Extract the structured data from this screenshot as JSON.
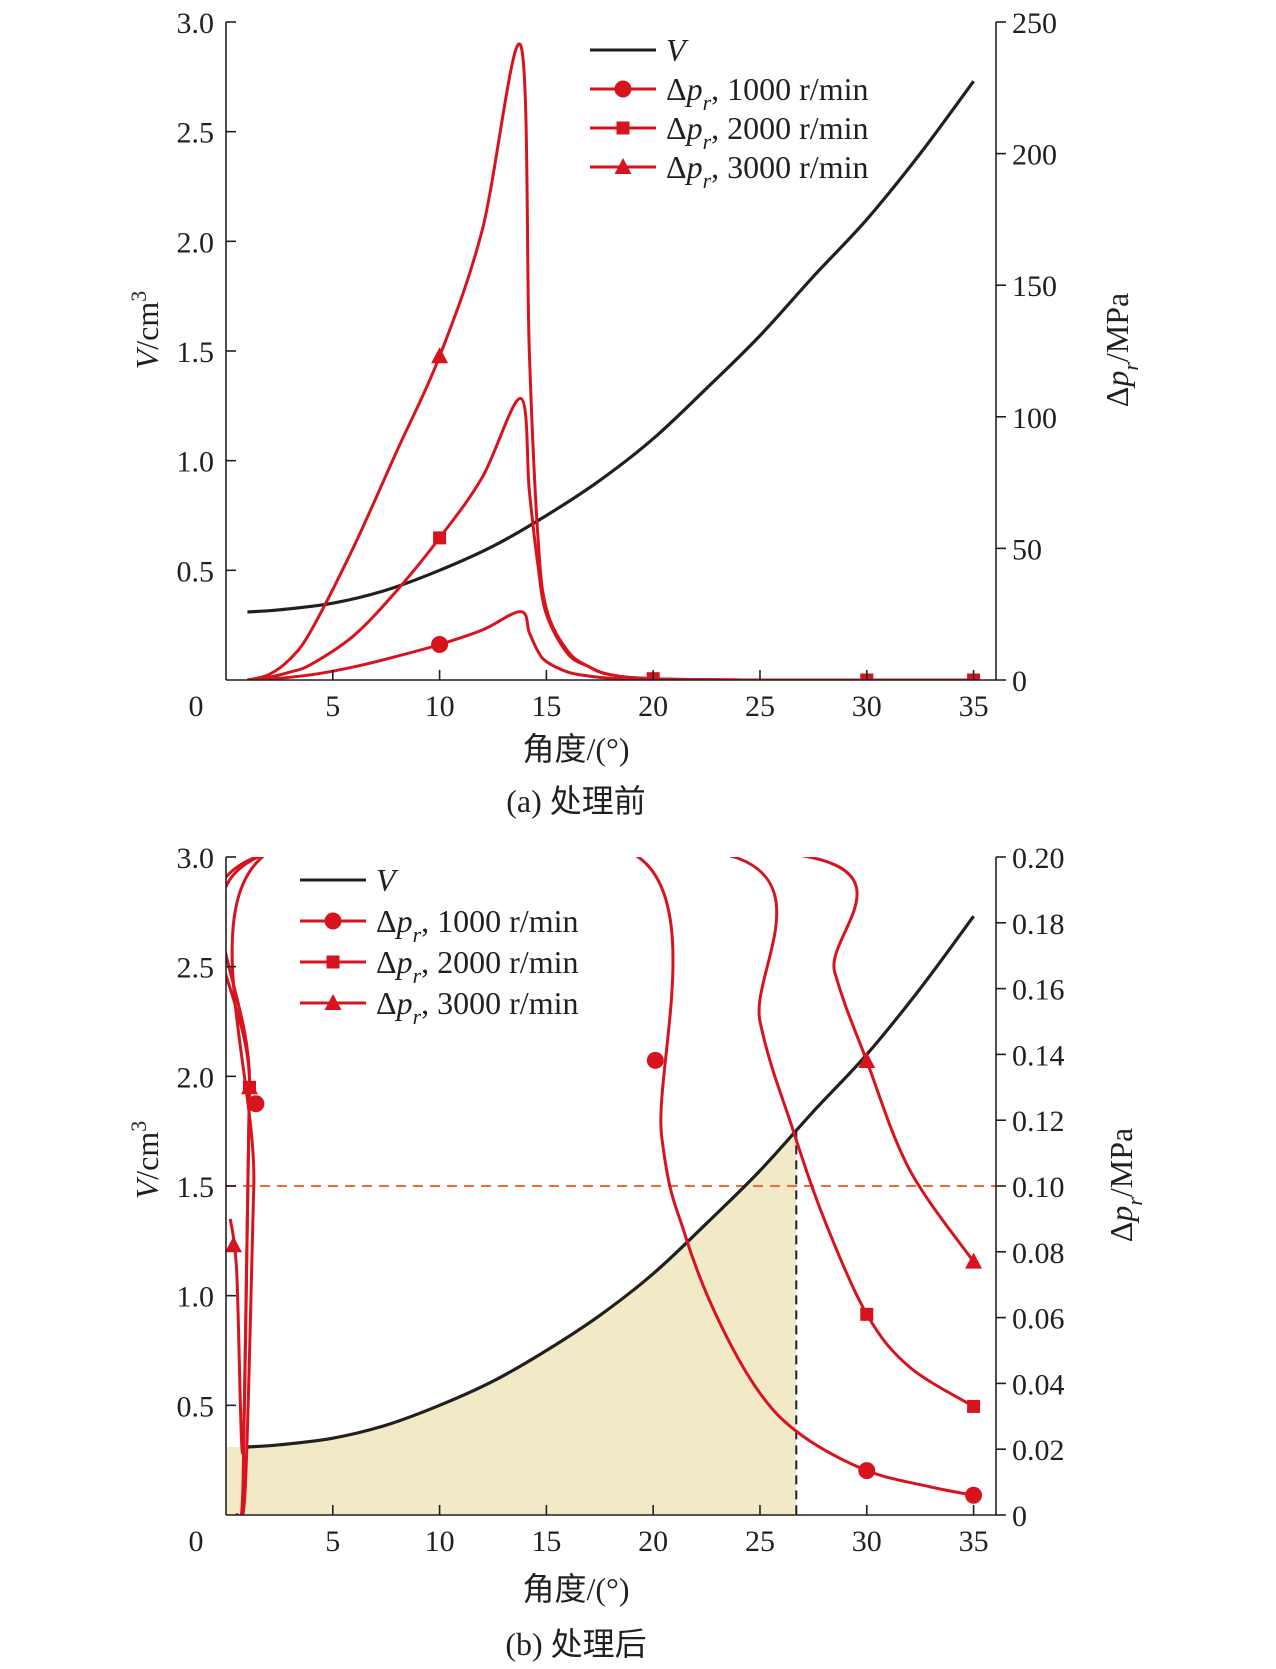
{
  "figure": {
    "colors": {
      "red": "#d7141e",
      "black": "#231f20",
      "threshold": "#ee6a3c",
      "fill": "#f2eac6"
    },
    "panels": [
      {
        "caption": "(a) 处理前",
        "xlabel": "角度/(°)",
        "ylabel_left": {
          "symbol": "V",
          "unit": "/cm",
          "exponent": "3"
        },
        "ylabel_right": {
          "delta": "Δ",
          "symbol": "p",
          "subscript": "r",
          "unit": "/MPa"
        },
        "x_ticks": [
          "0",
          "5",
          "10",
          "15",
          "20",
          "25",
          "30",
          "35"
        ],
        "y_left_ticks": [
          "0.5",
          "1.0",
          "1.5",
          "2.0",
          "2.5",
          "3.0"
        ],
        "y_right_ticks": [
          "0",
          "50",
          "100",
          "150",
          "200",
          "250"
        ],
        "legend": [
          {
            "name": "V",
            "marker": "none",
            "italic": true
          },
          {
            "name": ", 1000 r/min",
            "marker": "circle"
          },
          {
            "name": ", 2000 r/min",
            "marker": "square"
          },
          {
            "name": ", 3000 r/min",
            "marker": "triangle"
          }
        ]
      },
      {
        "caption": "(b) 处理后",
        "xlabel": "角度/(°)",
        "ylabel_left": {
          "symbol": "V",
          "unit": "/cm",
          "exponent": "3"
        },
        "ylabel_right": {
          "delta": "Δ",
          "symbol": "p",
          "subscript": "r",
          "unit": "/MPa"
        },
        "x_ticks": [
          "0",
          "5",
          "10",
          "15",
          "20",
          "25",
          "30",
          "35"
        ],
        "y_left_ticks": [
          "0.5",
          "1.0",
          "1.5",
          "2.0",
          "2.5",
          "3.0"
        ],
        "y_right_ticks": [
          "0",
          "0.02",
          "0.04",
          "0.06",
          "0.08",
          "0.10",
          "0.12",
          "0.14",
          "0.16",
          "0.18",
          "0.20"
        ],
        "legend": [
          {
            "name": "V",
            "marker": "none",
            "italic": true
          },
          {
            "name": ", 1000 r/min",
            "marker": "circle"
          },
          {
            "name": ", 2000 r/min",
            "marker": "square"
          },
          {
            "name": ", 3000 r/min",
            "marker": "triangle"
          }
        ]
      }
    ]
  },
  "chart_data": [
    {
      "type": "line",
      "title": "(a) 处理前",
      "xlabel": "角度/(°)",
      "ylabel": "V/cm3",
      "ylabel_right": "Δp_r/MPa",
      "xlim": [
        0,
        36
      ],
      "ylim": [
        0,
        3.0
      ],
      "ylim_right": [
        0,
        250
      ],
      "grid": false,
      "legend_position": "top-right",
      "series": [
        {
          "name": "V",
          "axis": "left",
          "color": "#231f20",
          "marker": "none",
          "x": [
            1,
            2.5,
            5,
            7.5,
            10,
            12.5,
            15,
            17.5,
            20,
            22.5,
            25,
            27.5,
            30,
            32.5,
            35
          ],
          "y": [
            0.31,
            0.32,
            0.35,
            0.41,
            0.5,
            0.61,
            0.75,
            0.91,
            1.1,
            1.33,
            1.57,
            1.84,
            2.1,
            2.4,
            2.73
          ]
        },
        {
          "name": "Δp_r, 1000 r/min",
          "axis": "right",
          "color": "#d7141e",
          "marker": "circle",
          "x": [
            1,
            2,
            4,
            6,
            8,
            10,
            12,
            13.8,
            14.2,
            14.6,
            15,
            16,
            17,
            18,
            20,
            25,
            30,
            35
          ],
          "y": [
            0,
            0.3,
            2,
            5,
            9,
            13.5,
            19,
            26,
            18,
            11,
            7,
            3,
            1.5,
            0.7,
            0.2,
            0,
            0,
            0
          ],
          "markers_x": [
            10
          ]
        },
        {
          "name": "Δp_r, 2000 r/min",
          "axis": "right",
          "color": "#d7141e",
          "marker": "square",
          "x": [
            1,
            2,
            3,
            4,
            6,
            8,
            10,
            12,
            13.8,
            14.2,
            14.6,
            15,
            16,
            17,
            18,
            20,
            25,
            30,
            35
          ],
          "y": [
            0,
            1,
            3,
            6,
            17,
            34,
            54,
            77,
            107,
            72,
            44,
            25,
            10,
            5,
            2,
            0.5,
            0,
            0,
            0
          ],
          "markers_x": [
            10,
            20,
            30,
            35
          ]
        },
        {
          "name": "Δp_r, 3000 r/min",
          "axis": "right",
          "color": "#d7141e",
          "marker": "triangle",
          "x": [
            1,
            2,
            3,
            4,
            6,
            8,
            10,
            12,
            13.8,
            14.2,
            14.6,
            15,
            16,
            17,
            18,
            20,
            25,
            30,
            35
          ],
          "y": [
            0,
            2,
            8,
            19,
            51,
            87,
            123,
            171,
            241,
            125,
            55,
            27,
            11,
            5,
            2,
            0.5,
            0,
            0,
            0
          ],
          "markers_x": [
            10
          ]
        }
      ]
    },
    {
      "type": "line",
      "title": "(b) 处理后",
      "xlabel": "角度/(°)",
      "ylabel": "V/cm3",
      "ylabel_right": "Δp_r/MPa",
      "xlim": [
        0,
        36
      ],
      "ylim": [
        0,
        3.0
      ],
      "ylim_right": [
        0,
        0.2
      ],
      "grid": false,
      "legend_position": "top-left",
      "threshold_right": 0.1,
      "threshold_angle": 26.7,
      "series": [
        {
          "name": "V",
          "axis": "left",
          "color": "#231f20",
          "marker": "none",
          "x": [
            1,
            2.5,
            5,
            7.5,
            10,
            12.5,
            15,
            17.5,
            20,
            22.5,
            25,
            27.5,
            30,
            32.5,
            35
          ],
          "y": [
            0.31,
            0.32,
            0.35,
            0.41,
            0.5,
            0.61,
            0.75,
            0.91,
            1.1,
            1.33,
            1.57,
            1.84,
            2.1,
            2.4,
            2.73
          ]
        },
        {
          "name": "Δp_r, 1000 r/min",
          "axis": "right",
          "color": "#d7141e",
          "marker": "circle",
          "x": [
            0.5,
            0.9,
            1.3,
            1.7,
            19.3,
            20.4,
            21.5,
            23,
            25,
            27,
            30,
            33,
            35
          ],
          "y": [
            0,
            0.008,
            0.1,
            0.2,
            0.2,
            0.115,
            0.085,
            0.06,
            0.037,
            0.024,
            0.0135,
            0.0085,
            0.006
          ],
          "markers_x": [
            1.4,
            20.1,
            30,
            35
          ]
        },
        {
          "name": "Δp_r, 2000 r/min",
          "axis": "right",
          "color": "#d7141e",
          "marker": "square",
          "x": [
            0.5,
            0.8,
            1.1,
            1.5,
            23.8,
            25,
            26.5,
            28,
            30,
            32,
            35
          ],
          "y": [
            0,
            0.01,
            0.13,
            0.2,
            0.2,
            0.15,
            0.118,
            0.09,
            0.061,
            0.045,
            0.033
          ],
          "markers_x": [
            1.1,
            30,
            35
          ]
        },
        {
          "name": "Δp_r, 3000 r/min",
          "axis": "right",
          "color": "#d7141e",
          "marker": "triangle",
          "x": [
            0.2,
            0.5,
            0.8,
            1.1,
            1.4,
            27.3,
            28.5,
            30,
            32,
            35
          ],
          "y": [
            0.09,
            0.074,
            0.02,
            0.13,
            0.2,
            0.2,
            0.165,
            0.138,
            0.105,
            0.077
          ],
          "markers_x": [
            0.35,
            1.1,
            30,
            35
          ]
        }
      ]
    }
  ]
}
